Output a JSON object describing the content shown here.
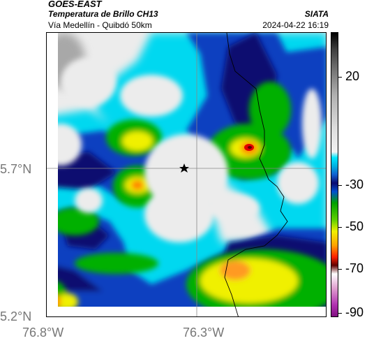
{
  "header": {
    "satellite": "GOES-EAST",
    "product": "Temperatura de Brillo CH13",
    "region": "Vía Medellín - Quibdó 50km",
    "organization": "SIATA",
    "timestamp": "2024-04-22 16:19"
  },
  "axes": {
    "latitude_labels": [
      "5.7°N",
      "5.2°N"
    ],
    "longitude_labels": [
      "76.8°W",
      "76.3°W"
    ]
  },
  "colorbar": {
    "tick_labels": [
      "20",
      "-30",
      "-50",
      "-70",
      "-90"
    ],
    "tick_values": [
      20,
      -30,
      -50,
      -70,
      -90
    ],
    "colors": {
      "warm_top": "#1a1a1a",
      "mid_grey": "#bdbdbd",
      "light_grey": "#ececec",
      "cyan": "#00d8f0",
      "blue": "#1040c0",
      "navy": "#0a0a70",
      "green": "#00b000",
      "yellow": "#f0f000",
      "orange": "#ff8000",
      "red": "#e00000",
      "dark_red": "#600000",
      "magenta": "#c040c0"
    }
  },
  "map": {
    "marker": "star-icon",
    "gridlines": "on"
  }
}
